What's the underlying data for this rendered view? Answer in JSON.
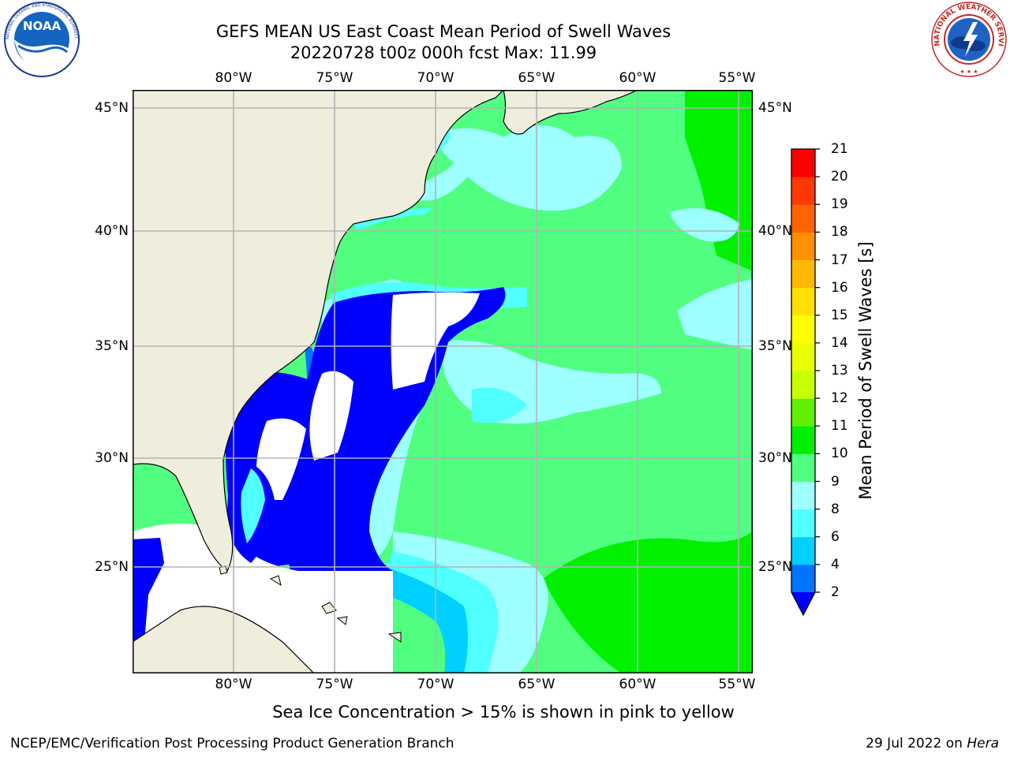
{
  "header": {
    "title_line1": "GEFS MEAN US East Coast Mean Period of Swell Waves",
    "title_line2": "20220728 t00z 000h fcst   Max: 11.99"
  },
  "logos": {
    "noaa": {
      "text": "NOAA",
      "ring_text": "NATIONAL OCEANIC AND ATMOSPHERIC ADMINISTRATION · U.S. DEPARTMENT OF COMMERCE"
    },
    "nws": {
      "ring_text": "NATIONAL WEATHER SERVICE"
    }
  },
  "map": {
    "lon_ticks": [
      "80°W",
      "75°W",
      "70°W",
      "65°W",
      "60°W",
      "55°W"
    ],
    "lat_ticks": [
      "45°N",
      "40°N",
      "35°N",
      "30°N",
      "25°N"
    ],
    "colors": {
      "land": "#efeedd",
      "ocean_under_2": "#ffffff",
      "coast": "#000000",
      "grid": "#b3b3b3"
    }
  },
  "colorbar": {
    "title": "Mean Period of Swell Waves [s]",
    "labels": [
      "21",
      "20",
      "19",
      "18",
      "17",
      "16",
      "15",
      "14",
      "13",
      "12",
      "11",
      "10",
      "9",
      "8",
      "6",
      "4",
      "2"
    ],
    "bins": [
      {
        "range": "2-4",
        "color": "#0073ff"
      },
      {
        "range": "4-6",
        "color": "#00d0ff"
      },
      {
        "range": "6-8",
        "color": "#50ffff"
      },
      {
        "range": "8-9",
        "color": "#9effff"
      },
      {
        "range": "9-10",
        "color": "#50ff80"
      },
      {
        "range": "10-11",
        "color": "#00f000"
      },
      {
        "range": "11-12",
        "color": "#60f000"
      },
      {
        "range": "12-13",
        "color": "#c8ff00"
      },
      {
        "range": "13-14",
        "color": "#e8ff00"
      },
      {
        "range": "14-15",
        "color": "#ffff00"
      },
      {
        "range": "15-16",
        "color": "#ffe000"
      },
      {
        "range": "16-17",
        "color": "#ffb800"
      },
      {
        "range": "17-18",
        "color": "#ff9000"
      },
      {
        "range": "18-19",
        "color": "#ff6400"
      },
      {
        "range": "19-20",
        "color": "#ff3800"
      },
      {
        "range": "20-21",
        "color": "#ff0000"
      }
    ],
    "under_color": "#0000ff"
  },
  "notes": {
    "ice": "Sea Ice Concentration > 15% is shown in pink to yellow"
  },
  "footer": {
    "left": "NCEP/EMC/Verification Post Processing Product Generation Branch",
    "right_prefix": "29 Jul 2022 on ",
    "right_host": "Hera"
  }
}
